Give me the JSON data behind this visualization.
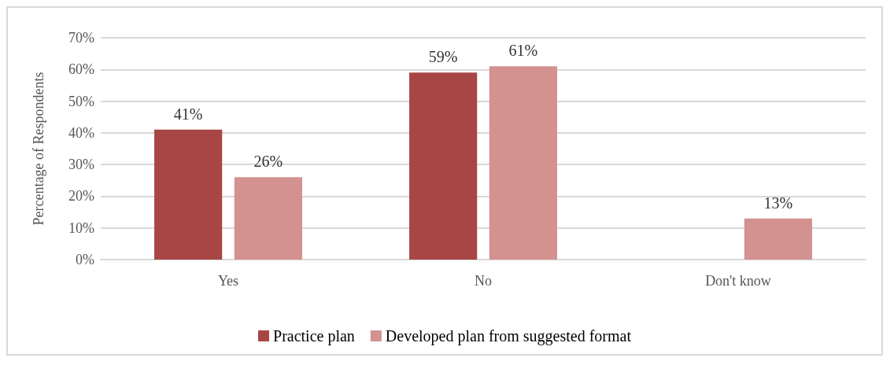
{
  "chart_data": {
    "type": "bar",
    "ylabel": "Percentage of Respondents",
    "categories": [
      "Yes",
      "No",
      "Don't know"
    ],
    "series": [
      {
        "name": "Practice plan",
        "color": "#a84646",
        "values": [
          41,
          59,
          null
        ],
        "value_labels": [
          "41%",
          "59%",
          null
        ]
      },
      {
        "name": "Developed plan from suggested format",
        "color": "#d39290",
        "values": [
          26,
          61,
          13
        ],
        "value_labels": [
          "26%",
          "61%",
          "13%"
        ]
      }
    ],
    "ylim": [
      0,
      70
    ],
    "yticks": [
      {
        "value": 0,
        "label": "0%"
      },
      {
        "value": 10,
        "label": "10%"
      },
      {
        "value": 20,
        "label": "20%"
      },
      {
        "value": 30,
        "label": "30%"
      },
      {
        "value": 40,
        "label": "40%"
      },
      {
        "value": 50,
        "label": "50%"
      },
      {
        "value": 60,
        "label": "60%"
      },
      {
        "value": 70,
        "label": "70%"
      }
    ],
    "grid": "y",
    "legend": "bottom"
  }
}
